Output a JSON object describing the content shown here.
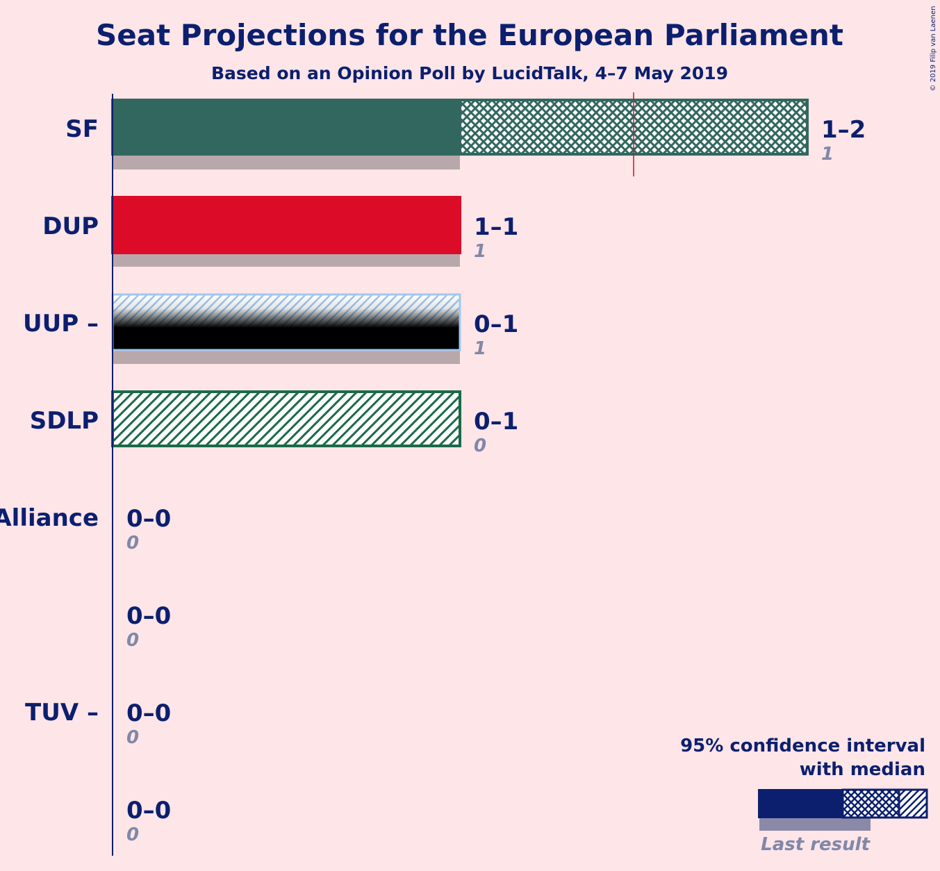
{
  "chart_data": {
    "type": "bar",
    "title": "Seat Projections for the European Parliament",
    "subtitle": "Based on an Opinion Poll by LucidTalk, 4–7 May 2019",
    "copyright": "© 2019 Filip van Laenen",
    "xlim": [
      0,
      2
    ],
    "majority_line": 1.5,
    "parties": [
      {
        "name": "SF",
        "low": 1,
        "high": 2,
        "range_label": "1–2",
        "last": 1,
        "last_label": "1",
        "color": "#326760",
        "style": "solid-cross"
      },
      {
        "name": "DUP",
        "low": 1,
        "high": 1,
        "range_label": "1–1",
        "last": 1,
        "last_label": "1",
        "color": "#DC0C29",
        "style": "solid"
      },
      {
        "name": "UUP –",
        "low": 0,
        "high": 1,
        "range_label": "0–1",
        "last": 1,
        "last_label": "1",
        "color": "#A0C8F0",
        "style": "uup"
      },
      {
        "name": "SDLP",
        "low": 0,
        "high": 1,
        "range_label": "0–1",
        "last": 0,
        "last_label": "0",
        "color": "#1B6A48",
        "style": "hatch"
      },
      {
        "name": "Alliance",
        "low": 0,
        "high": 0,
        "range_label": "0–0",
        "last": 0,
        "last_label": "0",
        "color": "#F6CB2F",
        "style": "none"
      },
      {
        "name": "",
        "low": 0,
        "high": 0,
        "range_label": "0–0",
        "last": 0,
        "last_label": "0",
        "color": "#999999",
        "style": "none"
      },
      {
        "name": "TUV –",
        "low": 0,
        "high": 0,
        "range_label": "0–0",
        "last": 0,
        "last_label": "0",
        "color": "#0C3A6E",
        "style": "none"
      },
      {
        "name": "",
        "low": 0,
        "high": 0,
        "range_label": "0–0",
        "last": 0,
        "last_label": "0",
        "color": "#999999",
        "style": "none"
      }
    ],
    "legend": {
      "line1": "95% confidence interval",
      "line2": "with median",
      "last_result": "Last result"
    },
    "colors": {
      "text": "#0C1F6E",
      "last_bar": "#B8A8AC",
      "majority": "#C8102E",
      "background": "#FDE5E8"
    }
  }
}
